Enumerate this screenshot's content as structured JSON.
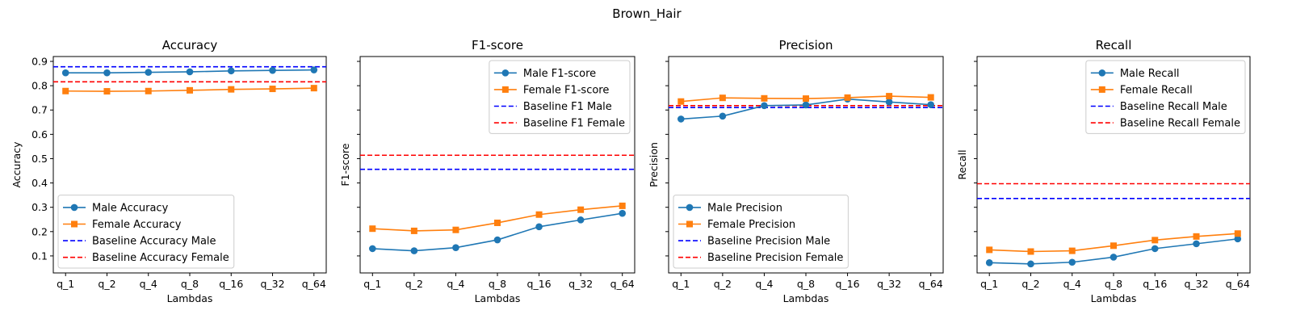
{
  "figure": {
    "suptitle": "Brown_Hair",
    "colors": {
      "male": "#1f77b4",
      "female": "#ff7f0e",
      "baseline_male": "#0000ff",
      "baseline_female": "#ff0000"
    }
  },
  "chart_data": [
    {
      "type": "line",
      "title": "Accuracy",
      "xlabel": "Lambdas",
      "ylabel": "Accuracy",
      "categories": [
        "q_1",
        "q_2",
        "q_4",
        "q_8",
        "q_16",
        "q_32",
        "q_64"
      ],
      "ylim": [
        0.03,
        0.92
      ],
      "yticks": [
        0.1,
        0.2,
        0.3,
        0.4,
        0.5,
        0.6,
        0.7,
        0.8,
        0.9
      ],
      "ytick_labels": [
        "0.1",
        "0.2",
        "0.3",
        "0.4",
        "0.5",
        "0.6",
        "0.7",
        "0.8",
        "0.9"
      ],
      "legend_loc": "lower-left",
      "series": [
        {
          "name": "Male Accuracy",
          "values": [
            0.853,
            0.853,
            0.855,
            0.857,
            0.861,
            0.863,
            0.865
          ],
          "color": "#1f77b4",
          "marker": "circle"
        },
        {
          "name": "Female Accuracy",
          "values": [
            0.778,
            0.777,
            0.778,
            0.781,
            0.785,
            0.787,
            0.79
          ],
          "color": "#ff7f0e",
          "marker": "square"
        }
      ],
      "baselines": [
        {
          "name": "Baseline Accuracy Male",
          "value": 0.878,
          "color": "#0000ff"
        },
        {
          "name": "Baseline Accuracy Female",
          "value": 0.816,
          "color": "#ff0000"
        }
      ]
    },
    {
      "type": "line",
      "title": "F1-score",
      "xlabel": "Lambdas",
      "ylabel": "F1-score",
      "categories": [
        "q_1",
        "q_2",
        "q_4",
        "q_8",
        "q_16",
        "q_32",
        "q_64"
      ],
      "ylim": [
        0.03,
        0.92
      ],
      "yticks": [
        0.1,
        0.2,
        0.3,
        0.4,
        0.5,
        0.6,
        0.7,
        0.8,
        0.9
      ],
      "ytick_labels": [],
      "legend_loc": "upper-right",
      "series": [
        {
          "name": "Male F1-score",
          "values": [
            0.13,
            0.121,
            0.134,
            0.166,
            0.22,
            0.248,
            0.275
          ],
          "color": "#1f77b4",
          "marker": "circle"
        },
        {
          "name": "Female F1-score",
          "values": [
            0.212,
            0.203,
            0.207,
            0.236,
            0.27,
            0.29,
            0.306
          ],
          "color": "#ff7f0e",
          "marker": "square"
        }
      ],
      "baselines": [
        {
          "name": "Baseline F1 Male",
          "value": 0.456,
          "color": "#0000ff"
        },
        {
          "name": "Baseline F1 Female",
          "value": 0.514,
          "color": "#ff0000"
        }
      ]
    },
    {
      "type": "line",
      "title": "Precision",
      "xlabel": "Lambdas",
      "ylabel": "Precision",
      "categories": [
        "q_1",
        "q_2",
        "q_4",
        "q_8",
        "q_16",
        "q_32",
        "q_64"
      ],
      "ylim": [
        0.03,
        0.92
      ],
      "yticks": [
        0.1,
        0.2,
        0.3,
        0.4,
        0.5,
        0.6,
        0.7,
        0.8,
        0.9
      ],
      "ytick_labels": [],
      "legend_loc": "lower-left",
      "series": [
        {
          "name": "Male Precision",
          "values": [
            0.663,
            0.675,
            0.718,
            0.721,
            0.745,
            0.733,
            0.722
          ],
          "color": "#1f77b4",
          "marker": "circle"
        },
        {
          "name": "Female Precision",
          "values": [
            0.735,
            0.75,
            0.748,
            0.747,
            0.751,
            0.757,
            0.752
          ],
          "color": "#ff7f0e",
          "marker": "square"
        }
      ],
      "baselines": [
        {
          "name": "Baseline Precision Male",
          "value": 0.71,
          "color": "#0000ff"
        },
        {
          "name": "Baseline Precision Female",
          "value": 0.718,
          "color": "#ff0000"
        }
      ]
    },
    {
      "type": "line",
      "title": "Recall",
      "xlabel": "Lambdas",
      "ylabel": "Recall",
      "categories": [
        "q_1",
        "q_2",
        "q_4",
        "q_8",
        "q_16",
        "q_32",
        "q_64"
      ],
      "ylim": [
        0.03,
        0.92
      ],
      "yticks": [
        0.1,
        0.2,
        0.3,
        0.4,
        0.5,
        0.6,
        0.7,
        0.8,
        0.9
      ],
      "ytick_labels": [],
      "legend_loc": "upper-right",
      "series": [
        {
          "name": "Male Recall",
          "values": [
            0.072,
            0.067,
            0.074,
            0.095,
            0.13,
            0.15,
            0.17
          ],
          "color": "#1f77b4",
          "marker": "circle"
        },
        {
          "name": "Female Recall",
          "values": [
            0.125,
            0.118,
            0.121,
            0.142,
            0.165,
            0.18,
            0.192
          ],
          "color": "#ff7f0e",
          "marker": "square"
        }
      ],
      "baselines": [
        {
          "name": "Baseline Recall Male",
          "value": 0.336,
          "color": "#0000ff"
        },
        {
          "name": "Baseline Recall Female",
          "value": 0.397,
          "color": "#ff0000"
        }
      ]
    }
  ]
}
